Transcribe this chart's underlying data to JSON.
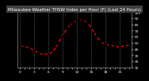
{
  "title": "Milwaukee Weather THSW Index per Hour (F) (Last 24 Hours)",
  "hours": [
    0,
    1,
    2,
    3,
    4,
    5,
    6,
    7,
    8,
    9,
    10,
    11,
    12,
    13,
    14,
    15,
    16,
    17,
    18,
    19,
    20,
    21,
    22,
    23
  ],
  "values": [
    45,
    44,
    42,
    38,
    33,
    31,
    32,
    35,
    48,
    62,
    74,
    82,
    86,
    88,
    84,
    75,
    62,
    52,
    47,
    46,
    44,
    43,
    46,
    45
  ],
  "line_color": "#ff0000",
  "marker_color": "#000000",
  "marker_size": 1.8,
  "line_style": "--",
  "line_width": 0.9,
  "ylim": [
    10,
    100
  ],
  "xlim": [
    -0.5,
    23.5
  ],
  "yticks": [
    10,
    20,
    30,
    40,
    50,
    60,
    70,
    80,
    90,
    100
  ],
  "ytick_labels": [
    "10",
    "20",
    "30",
    "40",
    "50",
    "60",
    "70",
    "80",
    "90",
    "100"
  ],
  "grid_color": "#888888",
  "bg_color": "#000000",
  "plot_bg": "#000000",
  "title_bg": "#404040",
  "text_color": "#ffffff",
  "title_fontsize": 4.0,
  "tick_fontsize": 3.2
}
